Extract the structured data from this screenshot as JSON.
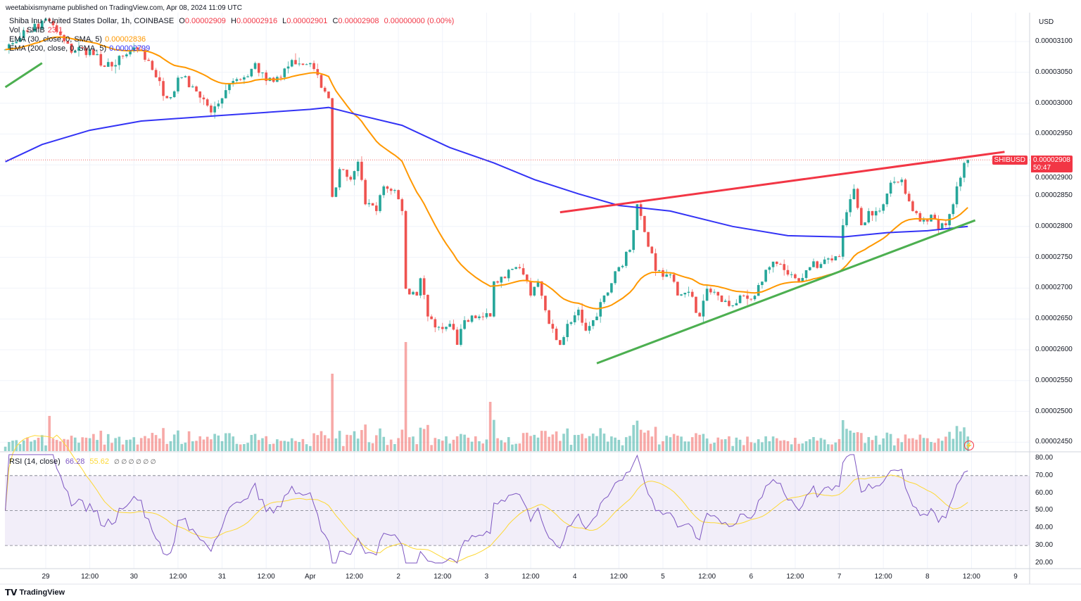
{
  "header": {
    "published": "weetabixismyname published on TradingView.com, Apr 08, 2024 11:09 UTC"
  },
  "legend": {
    "symbol": "Shiba Inu / United States Dollar, 1h, COINBASE",
    "o_label": "O",
    "o": "0.00002909",
    "h_label": "H",
    "h": "0.00002916",
    "l_label": "L",
    "l": "0.00002901",
    "c_label": "C",
    "c": "0.00002908",
    "change": "0.00000000 (0.00%)",
    "vol_label": "Vol · SHIB",
    "vol": "23.1",
    "ema30_label": "EMA (30, close, 0, SMA, 5)",
    "ema30": "0.00002836",
    "ema200_label": "EMA (200, close, 0, SMA, 5)",
    "ema200": "0.00002799",
    "rsi_label": "RSI (14, close)",
    "rsi": "66.28",
    "rsi_ma": "55.62",
    "rsi_extra": "∅ ∅ ∅ ∅ ∅ ∅"
  },
  "price_axis": {
    "currency": "USD",
    "ticks": [
      "0.00003100",
      "0.00003050",
      "0.00003000",
      "0.00002950",
      "0.00002900",
      "0.00002850",
      "0.00002800",
      "0.00002750",
      "0.00002700",
      "0.00002650",
      "0.00002600",
      "0.00002550",
      "0.00002500",
      "0.00002450"
    ],
    "symbol_tag": "SHIBUSD",
    "last_price": "0.00002908",
    "countdown": "50:47"
  },
  "rsi_axis": {
    "ticks": [
      "80.00",
      "70.00",
      "60.00",
      "50.00",
      "40.00",
      "30.00",
      "20.00"
    ]
  },
  "time_axis": {
    "labels": [
      "29",
      "12:00",
      "30",
      "12:00",
      "31",
      "12:00",
      "Apr",
      "12:00",
      "2",
      "12:00",
      "3",
      "12:00",
      "4",
      "12:00",
      "5",
      "12:00",
      "6",
      "12:00",
      "7",
      "12:00",
      "8",
      "12:00",
      "9"
    ]
  },
  "footer": {
    "brand": "TradingView"
  },
  "colors": {
    "up": "#26a69a",
    "down": "#ef5350",
    "ema30": "#ff9800",
    "ema200": "#3333f5",
    "resistance": "#f23645",
    "support": "#4caf50",
    "rsi": "#7e57c2",
    "rsi_ma": "#fdd835"
  },
  "chart_data": {
    "type": "candlestick",
    "interval": "1h",
    "ylim": [
      2.43e-05,
      3.14e-05
    ],
    "price_path": [
      [
        "2024-03-28 13:00",
        3.087e-05
      ],
      [
        "2024-03-28 19:00",
        3.116e-05
      ],
      [
        "2024-03-29 01:00",
        3.133e-05
      ],
      [
        "2024-03-29 03:00",
        3.116e-05
      ],
      [
        "2024-03-29 07:00",
        3.082e-05
      ],
      [
        "2024-03-29 12:00",
        3.087e-05
      ],
      [
        "2024-03-29 16:00",
        3.059e-05
      ],
      [
        "2024-03-29 21:00",
        3.076e-05
      ],
      [
        "2024-03-30 02:00",
        3.087e-05
      ],
      [
        "2024-03-30 06:00",
        3.042e-05
      ],
      [
        "2024-03-30 09:00",
        3.008e-05
      ],
      [
        "2024-03-30 13:00",
        3.042e-05
      ],
      [
        "2024-03-30 17:00",
        3.019e-05
      ],
      [
        "2024-03-30 21:00",
        2.985e-05
      ],
      [
        "2024-03-31 00:00",
        3.008e-05
      ],
      [
        "2024-03-31 03:00",
        3.036e-05
      ],
      [
        "2024-03-31 06:00",
        3.042e-05
      ],
      [
        "2024-03-31 09:00",
        3.065e-05
      ],
      [
        "2024-03-31 12:00",
        3.036e-05
      ],
      [
        "2024-03-31 16:00",
        3.042e-05
      ],
      [
        "2024-03-31 19:00",
        3.07e-05
      ],
      [
        "2024-04-01 00:00",
        3.065e-05
      ],
      [
        "2024-04-01 03:00",
        3.025e-05
      ],
      [
        "2024-04-01 05:00",
        3.008e-05
      ],
      [
        "2024-04-01 06:00",
        2.848e-05
      ],
      [
        "2024-04-01 08:00",
        2.893e-05
      ],
      [
        "2024-04-01 11:00",
        2.876e-05
      ],
      [
        "2024-04-01 13:00",
        2.905e-05
      ],
      [
        "2024-04-01 15:00",
        2.836e-05
      ],
      [
        "2024-04-01 18:00",
        2.825e-05
      ],
      [
        "2024-04-01 20:00",
        2.865e-05
      ],
      [
        "2024-04-01 23:00",
        2.859e-05
      ],
      [
        "2024-04-02 01:00",
        2.825e-05
      ],
      [
        "2024-04-02 02:00",
        2.699e-05
      ],
      [
        "2024-04-02 05:00",
        2.688e-05
      ],
      [
        "2024-04-02 06:00",
        2.716e-05
      ],
      [
        "2024-04-02 08:00",
        2.654e-05
      ],
      [
        "2024-04-02 11:00",
        2.637e-05
      ],
      [
        "2024-04-02 14:00",
        2.642e-05
      ],
      [
        "2024-04-02 16:00",
        2.608e-05
      ],
      [
        "2024-04-02 18:00",
        2.648e-05
      ],
      [
        "2024-04-02 22:00",
        2.654e-05
      ],
      [
        "2024-04-03 01:00",
        2.654e-05
      ],
      [
        "2024-04-03 02:00",
        2.711e-05
      ],
      [
        "2024-04-03 05:00",
        2.716e-05
      ],
      [
        "2024-04-03 08:00",
        2.734e-05
      ],
      [
        "2024-04-03 10:00",
        2.722e-05
      ],
      [
        "2024-04-03 12:00",
        2.688e-05
      ],
      [
        "2024-04-03 14:00",
        2.711e-05
      ],
      [
        "2024-04-03 17:00",
        2.642e-05
      ],
      [
        "2024-04-03 20:00",
        2.608e-05
      ],
      [
        "2024-04-03 22:00",
        2.642e-05
      ],
      [
        "2024-04-04 01:00",
        2.665e-05
      ],
      [
        "2024-04-04 03:00",
        2.631e-05
      ],
      [
        "2024-04-04 05:00",
        2.648e-05
      ],
      [
        "2024-04-04 08:00",
        2.688e-05
      ],
      [
        "2024-04-04 12:00",
        2.734e-05
      ],
      [
        "2024-04-04 15:00",
        2.762e-05
      ],
      [
        "2024-04-04 17:00",
        2.836e-05
      ],
      [
        "2024-04-04 19:00",
        2.791e-05
      ],
      [
        "2024-04-04 22:00",
        2.728e-05
      ],
      [
        "2024-04-05 01:00",
        2.722e-05
      ],
      [
        "2024-04-05 02:00",
        2.722e-05
      ],
      [
        "2024-04-05 04:00",
        2.688e-05
      ],
      [
        "2024-04-05 07:00",
        2.694e-05
      ],
      [
        "2024-04-05 10:00",
        2.654e-05
      ],
      [
        "2024-04-05 12:00",
        2.699e-05
      ],
      [
        "2024-04-05 15:00",
        2.688e-05
      ],
      [
        "2024-04-05 18:00",
        2.671e-05
      ],
      [
        "2024-04-05 21:00",
        2.688e-05
      ],
      [
        "2024-04-06 00:00",
        2.682e-05
      ],
      [
        "2024-04-06 02:00",
        2.705e-05
      ],
      [
        "2024-04-06 05:00",
        2.734e-05
      ],
      [
        "2024-04-06 08:00",
        2.739e-05
      ],
      [
        "2024-04-06 10:00",
        2.722e-05
      ],
      [
        "2024-04-06 13:00",
        2.711e-05
      ],
      [
        "2024-04-06 16:00",
        2.734e-05
      ],
      [
        "2024-04-06 19:00",
        2.739e-05
      ],
      [
        "2024-04-06 22:00",
        2.745e-05
      ],
      [
        "2024-04-07 00:00",
        2.751e-05
      ],
      [
        "2024-04-07 01:00",
        2.802e-05
      ],
      [
        "2024-04-07 04:00",
        2.861e-05
      ],
      [
        "2024-04-07 06:00",
        2.802e-05
      ],
      [
        "2024-04-07 08:00",
        2.825e-05
      ],
      [
        "2024-04-07 10:00",
        2.825e-05
      ],
      [
        "2024-04-07 12:00",
        2.836e-05
      ],
      [
        "2024-04-07 14:00",
        2.871e-05
      ],
      [
        "2024-04-07 17:00",
        2.876e-05
      ],
      [
        "2024-04-07 20:00",
        2.825e-05
      ],
      [
        "2024-04-07 22:00",
        2.808e-05
      ],
      [
        "2024-04-08 01:00",
        2.819e-05
      ],
      [
        "2024-04-08 03:00",
        2.796e-05
      ],
      [
        "2024-04-08 05:00",
        2.802e-05
      ],
      [
        "2024-04-08 07:00",
        2.836e-05
      ],
      [
        "2024-04-08 08:00",
        2.865e-05
      ],
      [
        "2024-04-08 10:00",
        2.903e-05
      ],
      [
        "2024-04-08 11:00",
        2.908e-05
      ]
    ],
    "ema200_path": [
      [
        "2024-03-28 13:00",
        2.905e-05
      ],
      [
        "2024-03-28 23:00",
        2.933e-05
      ],
      [
        "2024-03-29 12:00",
        2.956e-05
      ],
      [
        "2024-03-30 02:00",
        2.971e-05
      ],
      [
        "2024-03-30 21:00",
        2.979e-05
      ],
      [
        "2024-03-31 12:00",
        2.985e-05
      ],
      [
        "2024-04-01 00:00",
        2.99e-05
      ],
      [
        "2024-04-01 05:00",
        2.993e-05
      ],
      [
        "2024-04-01 13:00",
        2.981e-05
      ],
      [
        "2024-04-02 01:00",
        2.964e-05
      ],
      [
        "2024-04-02 14:00",
        2.928e-05
      ],
      [
        "2024-04-03 02:00",
        2.903e-05
      ],
      [
        "2024-04-03 13:00",
        2.876e-05
      ],
      [
        "2024-04-04 01:00",
        2.853e-05
      ],
      [
        "2024-04-04 12:00",
        2.834e-05
      ],
      [
        "2024-04-05 02:00",
        2.825e-05
      ],
      [
        "2024-04-05 19:00",
        2.8e-05
      ],
      [
        "2024-04-06 10:00",
        2.785e-05
      ],
      [
        "2024-04-07 01:00",
        2.783e-05
      ],
      [
        "2024-04-07 13:00",
        2.79e-05
      ],
      [
        "2024-04-08 00:00",
        2.793e-05
      ],
      [
        "2024-04-08 11:00",
        2.8e-05
      ]
    ],
    "trendlines": [
      {
        "role": "resistance",
        "from": [
          "2024-04-03 20:00",
          2.823e-05
        ],
        "to": [
          "2024-04-08 21:00",
          2.921e-05
        ]
      },
      {
        "role": "support",
        "from": [
          "2024-04-04 06:00",
          2.578e-05
        ],
        "to": [
          "2024-04-08 13:00",
          2.81e-05
        ]
      },
      {
        "role": "support",
        "from": [
          "2024-03-28 13:00",
          3.026e-05
        ],
        "to": [
          "2024-03-28 23:00",
          3.065e-05
        ]
      }
    ],
    "rsi": {
      "period": 14,
      "ma_period": 14,
      "upper": 70,
      "middle": 50,
      "lower": 30,
      "ylim": [
        20,
        80
      ]
    }
  }
}
